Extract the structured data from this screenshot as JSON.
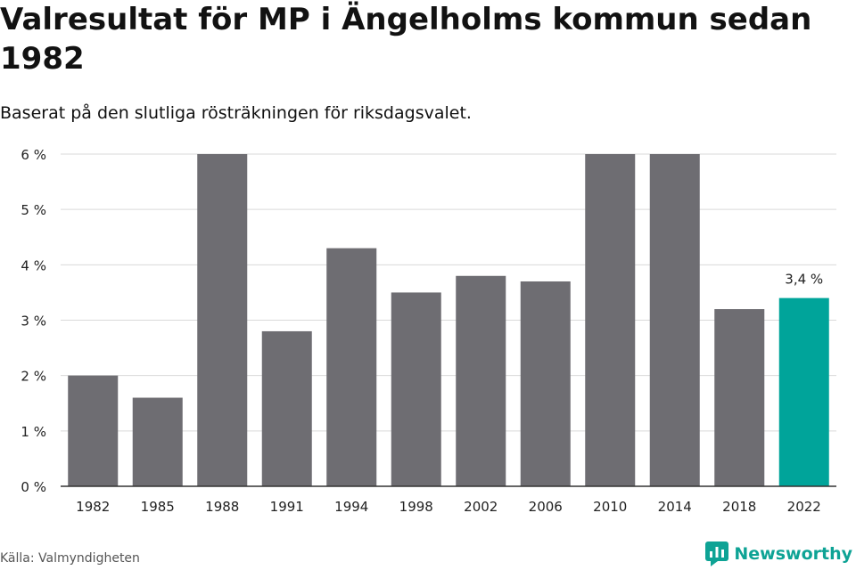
{
  "header": {
    "title": "Valresultat för MP i Ängelholms kommun sedan 1982",
    "subtitle": "Baserat på den slutliga rösträkningen för riksdagsvalet."
  },
  "chart_data": {
    "type": "bar",
    "categories": [
      "1982",
      "1985",
      "1988",
      "1991",
      "1994",
      "1998",
      "2002",
      "2006",
      "2010",
      "2014",
      "2018",
      "2022"
    ],
    "values": [
      2.0,
      1.6,
      6.0,
      2.8,
      4.3,
      3.5,
      3.8,
      3.7,
      6.0,
      6.0,
      3.2,
      3.4
    ],
    "ylim": [
      0,
      6
    ],
    "yticks": [
      0,
      1,
      2,
      3,
      4,
      5,
      6
    ],
    "ytick_labels": [
      "0 %",
      "1 %",
      "2 %",
      "3 %",
      "4 %",
      "5 %",
      "6 %"
    ],
    "highlight_index": 11,
    "highlight_label": "3,4 %",
    "colors": {
      "bar": "#6e6d72",
      "highlight": "#00a49a",
      "grid": "#d9d9d9",
      "axis": "#333333"
    },
    "grid": true
  },
  "footer": {
    "source": "Källa: Valmyndigheten",
    "brand": "Newsworthy",
    "brand_icon": "newsworthy-logo-icon"
  }
}
